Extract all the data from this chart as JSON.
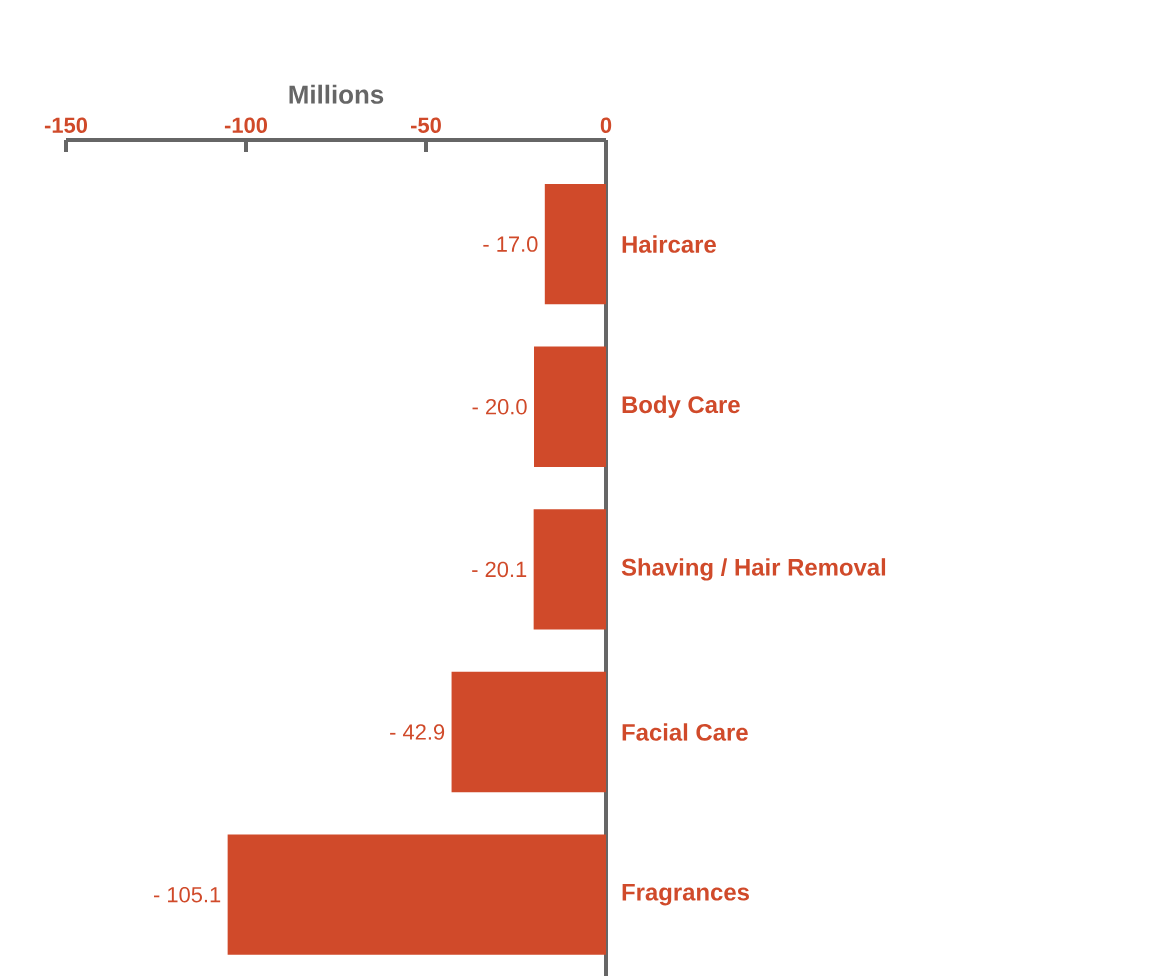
{
  "chart_data": {
    "type": "bar",
    "orientation": "horizontal",
    "xlabel": "Millions",
    "categories": [
      "Haircare",
      "Body Care",
      "Shaving / Hair Removal",
      "Facial Care",
      "Fragrances"
    ],
    "values": [
      -17.0,
      -20.0,
      -20.1,
      -42.9,
      -105.1
    ],
    "value_labels": [
      "- 17.0",
      "- 20.0",
      "- 20.1",
      "- 42.9",
      "- 105.1"
    ],
    "color": "#d04a2a",
    "xlim": [
      -150,
      0
    ],
    "xticks": [
      -150,
      -100,
      -50,
      0
    ]
  }
}
